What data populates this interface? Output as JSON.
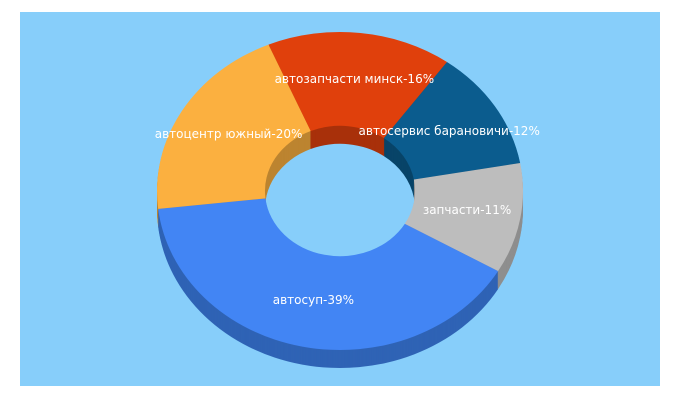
{
  "chart_data": {
    "type": "donut3d",
    "values": [
      16,
      12,
      11,
      39,
      20
    ],
    "value_labels": [
      "автозапчасти минск-16%",
      "автосервис барановичи-12%",
      "запчасти-11%",
      "автосуп-39%",
      "автоцентр южный-20%"
    ],
    "colors": [
      "#e0400c",
      "#0b5c8e",
      "#bdbdbd",
      "#4285f4",
      "#fbb040"
    ],
    "side_colors": [
      "#a8300a",
      "#084468",
      "#8e8e8e",
      "#2f63b5",
      "#bc8430"
    ],
    "background": "#87cefa"
  }
}
